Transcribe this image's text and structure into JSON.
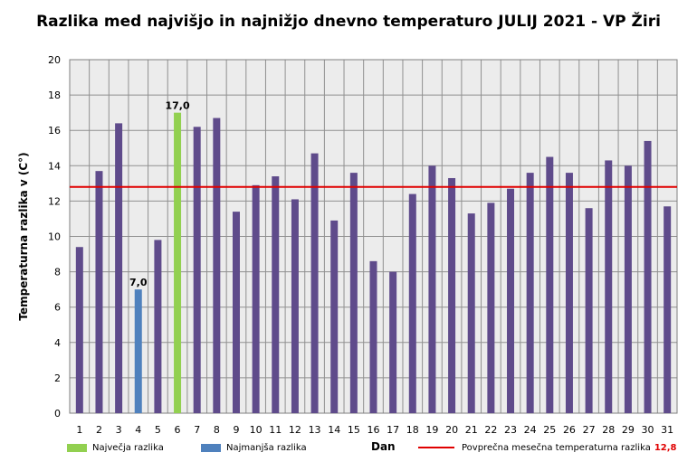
{
  "chart_data": {
    "type": "bar",
    "title": "Razlika med najvišjo in najnižjo dnevno temperaturo JULIJ 2021 - VP Žiri",
    "xlabel": "Dan",
    "ylabel": "Temperaturna razlika v (C°)",
    "ylim": [
      0,
      20
    ],
    "ytick_step": 2,
    "grid": true,
    "categories": [
      "1",
      "2",
      "3",
      "4",
      "5",
      "6",
      "7",
      "8",
      "9",
      "10",
      "11",
      "12",
      "13",
      "14",
      "15",
      "16",
      "17",
      "18",
      "19",
      "20",
      "21",
      "22",
      "23",
      "24",
      "25",
      "26",
      "27",
      "28",
      "29",
      "30",
      "31"
    ],
    "values": [
      9.4,
      13.7,
      16.4,
      7.0,
      9.8,
      17.0,
      16.2,
      16.7,
      11.4,
      12.9,
      13.4,
      12.1,
      14.7,
      10.9,
      13.6,
      8.6,
      8.0,
      12.4,
      14.0,
      13.3,
      11.3,
      11.9,
      12.7,
      13.6,
      14.5,
      13.6,
      11.6,
      14.3,
      14.0,
      15.4,
      11.7
    ],
    "max_index": 5,
    "min_index": 3,
    "max_label": "17,0",
    "min_label": "7,0",
    "average": 12.8,
    "average_label": "12,8",
    "legend": {
      "max": "Največja razlika",
      "min": "Najmanjša razlika",
      "average": "Povprečna mesečna temperaturna razlika"
    },
    "colors": {
      "bar": "#5f4b8b",
      "max": "#92d050",
      "min": "#4f81bd",
      "average": "#e00000",
      "plot_bg": "#ececec",
      "grid": "#909090"
    }
  }
}
